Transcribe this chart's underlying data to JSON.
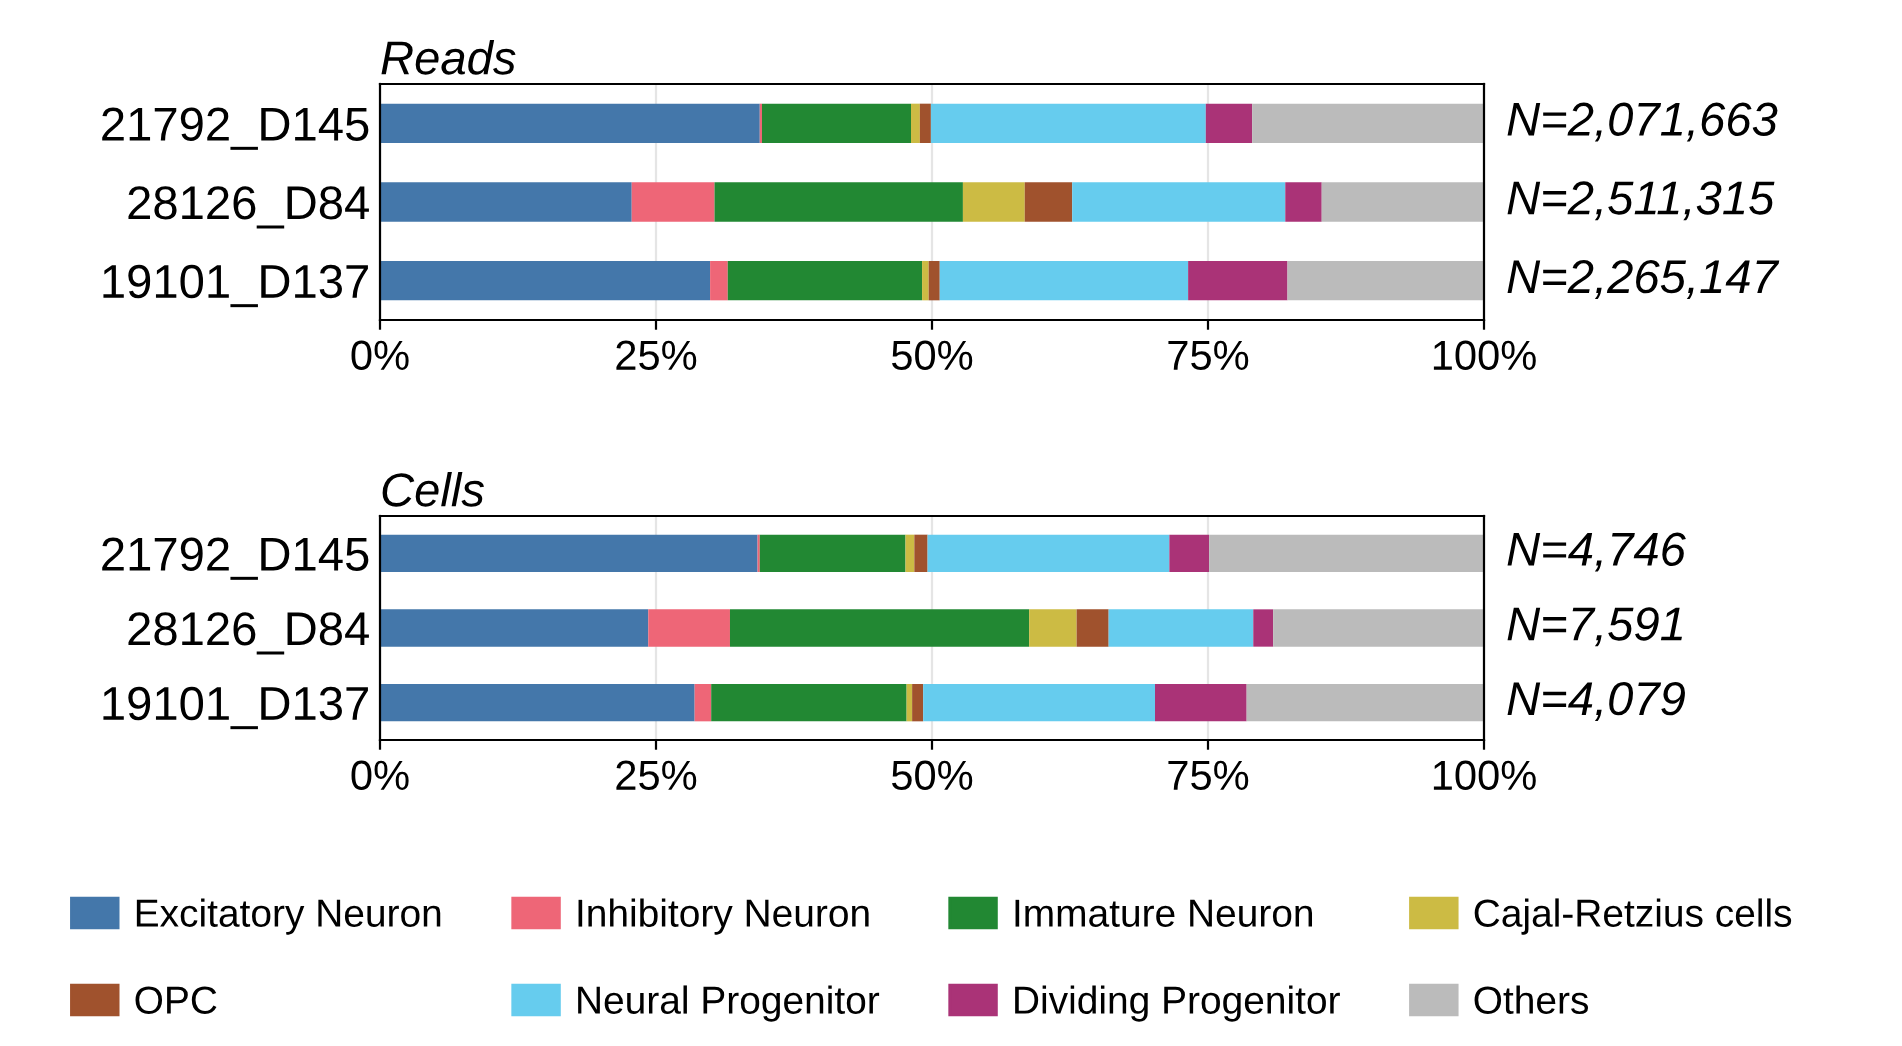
{
  "chart_data": [
    {
      "type": "bar",
      "orientation": "horizontal",
      "stacked": true,
      "title": "Reads",
      "categories": [
        "21792_D145",
        "28126_D84",
        "19101_D137"
      ],
      "series": [
        {
          "color": "#4477aa",
          "values": [
            34.4,
            22.8,
            29.9
          ]
        },
        {
          "color": "#ee6677",
          "values": [
            0.2,
            7.5,
            1.6
          ]
        },
        {
          "color": "#228833",
          "values": [
            13.5,
            22.5,
            17.6
          ]
        },
        {
          "color": "#ccbb44",
          "values": [
            0.8,
            5.6,
            0.6
          ]
        },
        {
          "color": "#a0522d",
          "values": [
            1.0,
            4.3,
            1.0
          ]
        },
        {
          "color": "#66ccee",
          "values": [
            24.9,
            19.3,
            22.5
          ]
        },
        {
          "color": "#aa3377",
          "values": [
            4.2,
            3.3,
            9.0
          ]
        },
        {
          "color": "#bbbbbb",
          "values": [
            21.0,
            14.7,
            17.8
          ]
        }
      ],
      "xlim": [
        0,
        100
      ],
      "xticks": [
        {
          "value": 0,
          "label": "0%"
        },
        {
          "value": 25,
          "label": "25%"
        },
        {
          "value": 50,
          "label": "50%"
        },
        {
          "value": 75,
          "label": "75%"
        },
        {
          "value": 100,
          "label": "100%"
        }
      ],
      "grid": "x",
      "legend": false,
      "annotations": [
        "N=2,071,663",
        "N=2,511,315",
        "N=2,265,147"
      ]
    },
    {
      "type": "bar",
      "orientation": "horizontal",
      "stacked": true,
      "title": "Cells",
      "categories": [
        "21792_D145",
        "28126_D84",
        "19101_D137"
      ],
      "series": [
        {
          "name": "Excitatory Neuron",
          "color": "#4477aa",
          "values": [
            34.2,
            24.3,
            28.5
          ]
        },
        {
          "name": "Inhibitory Neuron",
          "color": "#ee6677",
          "values": [
            0.2,
            7.4,
            1.5
          ]
        },
        {
          "name": "Immature Neuron",
          "color": "#228833",
          "values": [
            13.2,
            27.1,
            17.7
          ]
        },
        {
          "name": "Cajal-Retzius cells",
          "color": "#ccbb44",
          "values": [
            0.8,
            4.3,
            0.5
          ]
        },
        {
          "name": "OPC",
          "color": "#a0522d",
          "values": [
            1.2,
            2.9,
            1.0
          ]
        },
        {
          "name": "Neural Progenitor",
          "color": "#66ccee",
          "values": [
            21.9,
            13.1,
            21.0
          ]
        },
        {
          "name": "Dividing Progenitor",
          "color": "#aa3377",
          "values": [
            3.6,
            1.8,
            8.3
          ]
        },
        {
          "name": "Others",
          "color": "#bbbbbb",
          "values": [
            24.9,
            19.1,
            21.5
          ]
        }
      ],
      "xlim": [
        0,
        100
      ],
      "xticks": [
        {
          "value": 0,
          "label": "0%"
        },
        {
          "value": 25,
          "label": "25%"
        },
        {
          "value": 50,
          "label": "50%"
        },
        {
          "value": 75,
          "label": "75%"
        },
        {
          "value": 100,
          "label": "100%"
        }
      ],
      "grid": "x",
      "legend": "bottom",
      "annotations": [
        "N=4,746",
        "N=7,591",
        "N=4,079"
      ]
    }
  ]
}
